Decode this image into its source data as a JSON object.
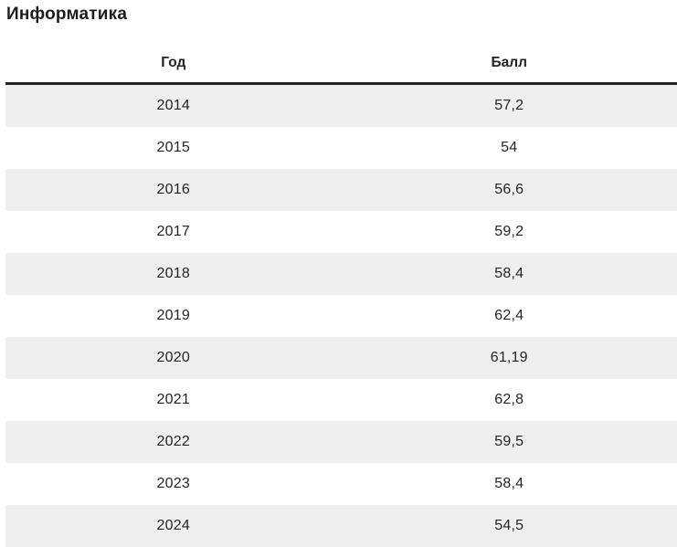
{
  "title": "Информатика",
  "table": {
    "columns": [
      {
        "label": "Год"
      },
      {
        "label": "Балл"
      }
    ],
    "rows": [
      {
        "year": "2014",
        "score": "57,2"
      },
      {
        "year": "2015",
        "score": "54"
      },
      {
        "year": "2016",
        "score": "56,6"
      },
      {
        "year": "2017",
        "score": "59,2"
      },
      {
        "year": "2018",
        "score": "58,4"
      },
      {
        "year": "2019",
        "score": "62,4"
      },
      {
        "year": "2020",
        "score": "61,19"
      },
      {
        "year": "2021",
        "score": "62,8"
      },
      {
        "year": "2022",
        "score": "59,5"
      },
      {
        "year": "2023",
        "score": "58,4"
      },
      {
        "year": "2024",
        "score": "54,5"
      }
    ]
  },
  "colors": {
    "stripe": "#efefef",
    "header_rule": "#212529",
    "text": "#212529",
    "background": "#ffffff"
  },
  "chart_data": {
    "type": "table",
    "title": "Информатика",
    "columns": [
      "Год",
      "Балл"
    ],
    "categories": [
      "2014",
      "2015",
      "2016",
      "2017",
      "2018",
      "2019",
      "2020",
      "2021",
      "2022",
      "2023",
      "2024"
    ],
    "values": [
      57.2,
      54,
      56.6,
      59.2,
      58.4,
      62.4,
      61.19,
      62.8,
      59.5,
      58.4,
      54.5
    ],
    "xlabel": "Год",
    "ylabel": "Балл",
    "layout": "striped rows, centered cells, thick dark rule under header, no outer borders"
  }
}
